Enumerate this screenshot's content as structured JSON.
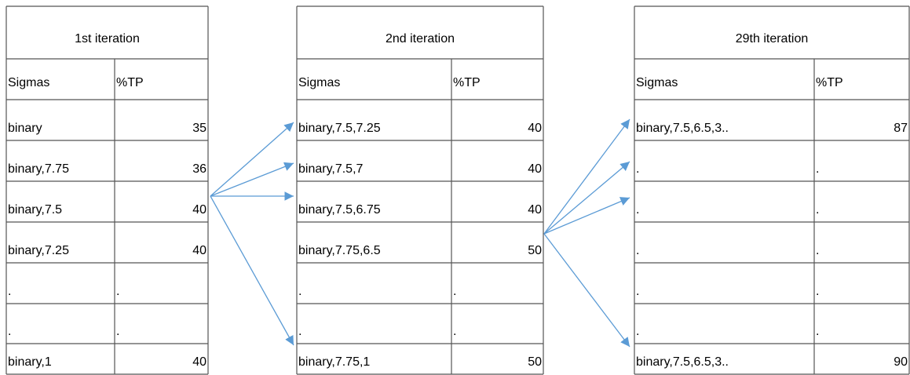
{
  "tables": [
    {
      "title": "1st iteration",
      "headers": [
        "Sigmas",
        "%TP"
      ],
      "rows": [
        [
          "binary",
          35
        ],
        [
          "binary,7.75",
          36
        ],
        [
          "binary,7.5",
          40
        ],
        [
          "binary,7.25",
          40
        ],
        [
          ".",
          "."
        ],
        [
          ".",
          "."
        ],
        [
          "binary,1",
          40
        ]
      ]
    },
    {
      "title": "2nd iteration",
      "headers": [
        "Sigmas",
        "%TP"
      ],
      "rows": [
        [
          "binary,7.5,7.25",
          40
        ],
        [
          "binary,7.5,7",
          40
        ],
        [
          "binary,7.5,6.75",
          40
        ],
        [
          "binary,7.75,6.5",
          50
        ],
        [
          ".",
          "."
        ],
        [
          ".",
          "."
        ],
        [
          "binary,7.75,1",
          50
        ]
      ]
    },
    {
      "title": "29th iteration",
      "headers": [
        "Sigmas",
        "%TP"
      ],
      "rows": [
        [
          "binary,7.5,6.5,3..",
          87
        ],
        [
          ".",
          "."
        ],
        [
          ".",
          "."
        ],
        [
          ".",
          "."
        ],
        [
          ".",
          "."
        ],
        [
          ".",
          "."
        ],
        [
          "binary,7.5,6.5,3..",
          90
        ]
      ]
    }
  ]
}
